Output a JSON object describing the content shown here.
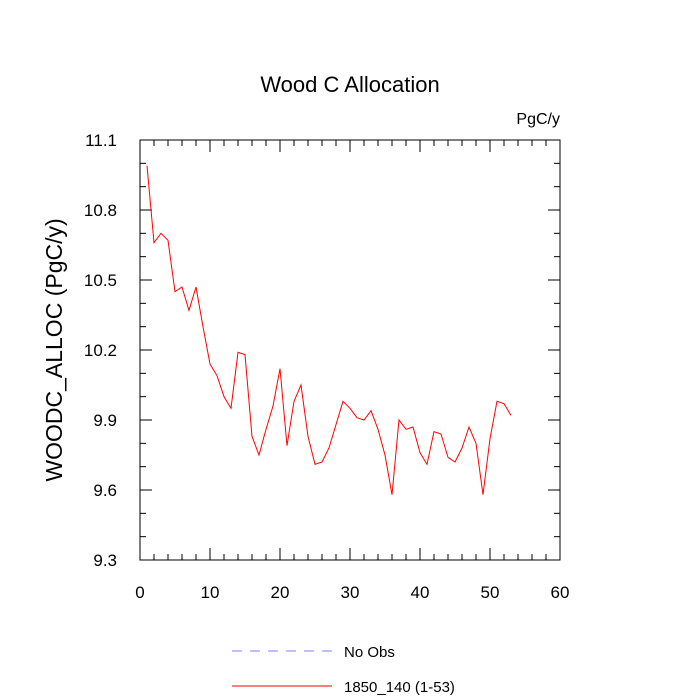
{
  "chart_data": {
    "type": "line",
    "title": "Wood C Allocation",
    "units_label": "PgC/y",
    "xlabel": "",
    "ylabel": "WOODC_ALLOC  (PgC/y)",
    "xlim": [
      0,
      60
    ],
    "ylim": [
      9.3,
      11.1
    ],
    "xticks": [
      0,
      10,
      20,
      30,
      40,
      50,
      60
    ],
    "xtick_labels": [
      "0",
      "10",
      "20",
      "30",
      "40",
      "50",
      "60"
    ],
    "yticks": [
      9.3,
      9.6,
      9.9,
      10.2,
      10.5,
      10.8,
      11.1
    ],
    "ytick_labels": [
      "9.3",
      "9.6",
      "9.9",
      "10.2",
      "10.5",
      "10.8",
      "11.1"
    ],
    "grid": false,
    "legend_position": "bottom-center",
    "series": [
      {
        "name": "No Obs",
        "color": "#8080ff",
        "dash": "dashed",
        "x": [],
        "values": []
      },
      {
        "name": "1850_140 (1-53)",
        "color": "#ff0000",
        "dash": "solid",
        "x": [
          1,
          2,
          3,
          4,
          5,
          6,
          7,
          8,
          9,
          10,
          11,
          12,
          13,
          14,
          15,
          16,
          17,
          18,
          19,
          20,
          21,
          22,
          23,
          24,
          25,
          26,
          27,
          28,
          29,
          30,
          31,
          32,
          33,
          34,
          35,
          36,
          37,
          38,
          39,
          40,
          41,
          42,
          43,
          44,
          45,
          46,
          47,
          48,
          49,
          50,
          51,
          52,
          53
        ],
        "values": [
          10.99,
          10.66,
          10.7,
          10.67,
          10.45,
          10.47,
          10.37,
          10.47,
          10.3,
          10.14,
          10.09,
          10.0,
          9.95,
          10.19,
          10.18,
          9.83,
          9.75,
          9.86,
          9.96,
          10.12,
          9.79,
          9.98,
          10.05,
          9.83,
          9.71,
          9.72,
          9.78,
          9.88,
          9.98,
          9.95,
          9.91,
          9.9,
          9.94,
          9.86,
          9.75,
          9.58,
          9.9,
          9.86,
          9.87,
          9.76,
          9.71,
          9.85,
          9.84,
          9.74,
          9.72,
          9.78,
          9.87,
          9.8,
          9.58,
          9.82,
          9.98,
          9.97,
          9.92
        ]
      }
    ]
  }
}
